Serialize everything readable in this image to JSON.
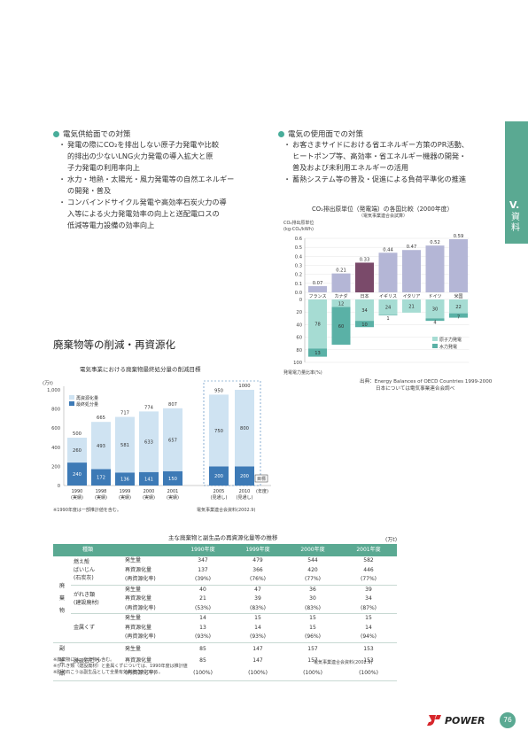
{
  "supply": {
    "heading": "電気供給面での対策",
    "items": [
      [
        "発電の際にCO₂を排出しない原子力発電や比較",
        "的排出の少ないLNG火力発電の導入拡大と原",
        "子力発電の利用率向上"
      ],
      [
        "水力・地熱・太陽光・風力発電等の自然エネルギー",
        "の開発・普及"
      ],
      [
        "コンバインドサイクル発電や高効率石炭火力の導",
        "入等による火力発電効率の向上と送配電ロスの",
        "低減等電力設備の効率向上"
      ]
    ]
  },
  "demand": {
    "heading": "電気の使用面での対策",
    "items": [
      [
        "お客さまサイドにおける省エネルギー方策のPR活動、",
        "ヒートポンプ等、高効率・省エネルギー機器の開発・",
        "普及および未利用エネルギーの活用"
      ],
      [
        "蓄熱システム等の普及・促進による負荷平準化の推進"
      ]
    ]
  },
  "side_tab": {
    "label_v": "V.",
    "label_text": "資料",
    "color": "#5aa992"
  },
  "section_title": "廃棄物等の削減・再資源化",
  "co2_chart": {
    "title": "CO₂排出原単位（発電端）の各国比較（2000年度）",
    "subtitle": "（電気事業連合会試算）",
    "ylabel_line1": "CO₂排出原単位",
    "ylabel_line2": "(kg-CO₂/kWh)",
    "bottom_label": "発電電力量比率(%)",
    "source_line1": "出典：Energy Balances of OECD Countries 1999-2000",
    "source_line2": "日本については電気事業連合会調べ",
    "legend_nuclear": "原子力発電",
    "legend_hydro": "水力発電",
    "top_ticks": [
      "0.6",
      "0.5",
      "0.4",
      "0.3",
      "0.2",
      "0.1",
      "0.0"
    ],
    "bottom_ticks": [
      "0",
      "20",
      "40",
      "60",
      "80",
      "100"
    ]
  },
  "waste_chart": {
    "title": "電気事業における廃棄物最終処分量の削減目標",
    "unit": "(万t)",
    "legend_recycle": "再資源化量",
    "legend_final": "最終処分量",
    "footnote": "※1990年度は一部推計値を含む。",
    "source": "電気事業連合会資料(2002.9)",
    "target_label": "目標",
    "year_label": "(年度)",
    "y_ticks": [
      "1,000",
      "800",
      "600",
      "400",
      "200",
      "0"
    ]
  },
  "chart_data": [
    {
      "type": "bar",
      "title": "CO₂排出原単位（発電端）の各国比較（2000年度）",
      "categories": [
        "フランス",
        "カナダ",
        "日本",
        "イギリス",
        "イタリア",
        "ドイツ",
        "米国"
      ],
      "ylabel": "CO₂排出原単位 (kg-CO₂/kWh)",
      "ylim": [
        0,
        0.6
      ],
      "series": [
        {
          "name": "CO₂排出原単位",
          "values": [
            0.07,
            0.21,
            0.33,
            0.44,
            0.47,
            0.52,
            0.59
          ]
        },
        {
          "name": "原子力発電",
          "values": [
            78,
            12,
            34,
            24,
            21,
            30,
            22
          ]
        },
        {
          "name": "水力発電",
          "values": [
            13,
            60,
            10,
            1,
            null,
            4,
            7
          ]
        }
      ],
      "bottom_ylim": [
        0,
        100
      ],
      "bottom_ylabel": "発電電力量比率(%)"
    },
    {
      "type": "bar",
      "title": "電気事業における廃棄物最終処分量の削減目標",
      "categories": [
        "1990\n(実績)",
        "1998\n(実績)",
        "1999\n(実績)",
        "2000\n(実績)",
        "2001\n(実績)",
        "2005\n(見通し)",
        "2010\n(見通し)"
      ],
      "ylabel": "(万t)",
      "ylim": [
        0,
        1000
      ],
      "totals": [
        500,
        665,
        717,
        774,
        807,
        950,
        1000
      ],
      "series": [
        {
          "name": "最終処分量",
          "values": [
            240,
            172,
            136,
            141,
            150,
            200,
            200
          ]
        },
        {
          "name": "再資源化量",
          "values": [
            260,
            493,
            581,
            633,
            657,
            750,
            800
          ]
        }
      ]
    }
  ],
  "table": {
    "title": "主な廃棄物と副生品の再資源化量等の推移",
    "unit": "(万t)",
    "headers": [
      "種類",
      "",
      "1990年度",
      "1999年度",
      "2000年度",
      "2001年度"
    ],
    "groups": [
      {
        "category": [
          "廃",
          "棄",
          "物"
        ],
        "rows": [
          {
            "item": [
              "燃え殻",
              "ばいじん",
              "(石炭灰)"
            ],
            "lines": [
              [
                "発生量",
                "347",
                "479",
                "544",
                "582"
              ],
              [
                "再資源化量",
                "137",
                "366",
                "420",
                "446"
              ],
              [
                "(再資源化率)",
                "(39%)",
                "(76%)",
                "(77%)",
                "(77%)"
              ]
            ]
          },
          {
            "item": [
              "がれき類",
              "(建設廃材)"
            ],
            "lines": [
              [
                "発生量",
                "40",
                "47",
                "36",
                "39"
              ],
              [
                "再資源化量",
                "21",
                "39",
                "30",
                "34"
              ],
              [
                "(再資源化率)",
                "(53%)",
                "(83%)",
                "(83%)",
                "(87%)"
              ]
            ]
          },
          {
            "item": [
              "金属くず"
            ],
            "lines": [
              [
                "発生量",
                "14",
                "15",
                "15",
                "15"
              ],
              [
                "再資源化量",
                "13",
                "14",
                "15",
                "14"
              ],
              [
                "(再資源化率)",
                "(93%)",
                "(93%)",
                "(96%)",
                "(94%)"
              ]
            ]
          }
        ]
      },
      {
        "category": [
          "副",
          "生",
          "品"
        ],
        "rows": [
          {
            "item": [
              "脱硫石こう"
            ],
            "lines": [
              [
                "発生量",
                "85",
                "147",
                "157",
                "153"
              ],
              [
                "再資源化量",
                "85",
                "147",
                "157",
                "153"
              ],
              [
                "(再資源化率)",
                "(100%)",
                "(100%)",
                "(100%)",
                "(100%)"
              ]
            ]
          }
        ]
      }
    ],
    "notes": [
      "※廃棄物には、有価物も含む。",
      "※がれき類（建設廃材）と金属くずについては、1990年度は推計値",
      "※脱硫石こうは副生品として全量有効利用されている。"
    ],
    "source": "電気事業連合会資料(2002.9)"
  },
  "footer": {
    "logo_text": "POWER",
    "page_number": "76"
  }
}
